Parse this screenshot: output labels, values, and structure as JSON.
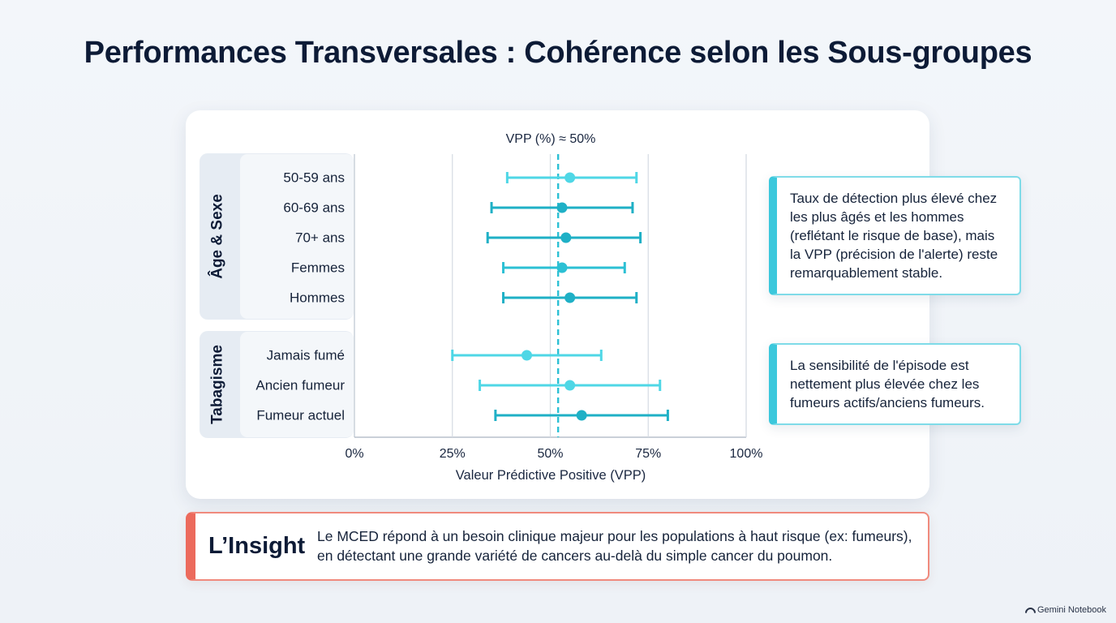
{
  "page": {
    "title": "Performances Transversales : Cohérence selon les Sous-groupes",
    "brand": "Gemini Notebook"
  },
  "colors": {
    "light_teal": "#4fd7e6",
    "mid_teal": "#2cc0d4",
    "dark_teal": "#1fb0c6",
    "insight_accent": "#ec6a5c"
  },
  "chart_data": {
    "type": "forest",
    "title": "",
    "reference_label": "VPP (%) ≈ 50%",
    "reference_value": 52,
    "xlabel": "Valeur Prédictive Positive (VPP)",
    "xlim": [
      0,
      100
    ],
    "x_ticks": [
      "0%",
      "25%",
      "50%",
      "75%",
      "100%"
    ],
    "x_tick_values": [
      0,
      25,
      50,
      75,
      100
    ],
    "gridlines": [
      25,
      50,
      75
    ],
    "groups": [
      {
        "name": "Âge & Sexe",
        "rows": [
          {
            "label": "50-59 ans",
            "value": 55,
            "low": 39,
            "high": 72,
            "shade": "light"
          },
          {
            "label": "60-69 ans",
            "value": 53,
            "low": 35,
            "high": 71,
            "shade": "dark"
          },
          {
            "label": "70+ ans",
            "value": 54,
            "low": 34,
            "high": 73,
            "shade": "dark"
          },
          {
            "label": "Femmes",
            "value": 53,
            "low": 38,
            "high": 69,
            "shade": "mid"
          },
          {
            "label": "Hommes",
            "value": 55,
            "low": 38,
            "high": 72,
            "shade": "dark"
          }
        ]
      },
      {
        "name": "Tabagisme",
        "rows": [
          {
            "label": "Jamais fumé",
            "value": 44,
            "low": 25,
            "high": 63,
            "shade": "light"
          },
          {
            "label": "Ancien fumeur",
            "value": 55,
            "low": 32,
            "high": 78,
            "shade": "light"
          },
          {
            "label": "Fumeur actuel",
            "value": 58,
            "low": 36,
            "high": 80,
            "shade": "dark"
          }
        ]
      }
    ]
  },
  "callouts": [
    {
      "text": "Taux de détection plus élevé chez les plus âgés et les hommes (reflétant le risque de base), mais la VPP (précision de l'alerte) reste remarquablement stable."
    },
    {
      "text": "La sensibilité de l'épisode est nettement plus élevée chez les fumeurs actifs/anciens fumeurs."
    }
  ],
  "insight": {
    "label": "L’Insight",
    "text": "Le MCED répond à un besoin clinique majeur pour les populations à haut risque (ex: fumeurs), en détectant une grande variété de cancers au-delà du simple cancer du poumon."
  }
}
